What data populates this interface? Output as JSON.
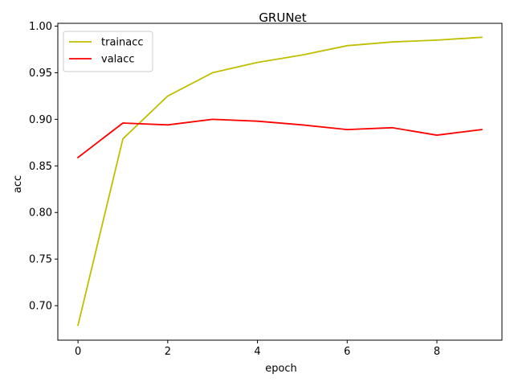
{
  "chart_data": {
    "type": "line",
    "title": "GRUNet",
    "xlabel": "epoch",
    "ylabel": "acc",
    "x": [
      0,
      1,
      2,
      3,
      4,
      5,
      6,
      7,
      8,
      9
    ],
    "series": [
      {
        "name": "trainacc",
        "color": "#bfbf00",
        "values": [
          0.679,
          0.879,
          0.925,
          0.95,
          0.961,
          0.969,
          0.979,
          0.983,
          0.985,
          0.988
        ]
      },
      {
        "name": "valacc",
        "color": "#ff0000",
        "values": [
          0.859,
          0.896,
          0.894,
          0.9,
          0.898,
          0.894,
          0.889,
          0.891,
          0.883,
          0.889
        ]
      }
    ],
    "xlim": [
      -0.45,
      9.45
    ],
    "ylim": [
      0.663,
      1.003
    ],
    "xticks": [
      0,
      2,
      4,
      6,
      8
    ],
    "xtick_labels": [
      "0",
      "2",
      "4",
      "6",
      "8"
    ],
    "yticks": [
      0.7,
      0.75,
      0.8,
      0.85,
      0.9,
      0.95,
      1.0
    ],
    "ytick_labels": [
      "0.70",
      "0.75",
      "0.80",
      "0.85",
      "0.90",
      "0.95",
      "1.00"
    ],
    "grid": false,
    "legend_position": "upper-left"
  }
}
